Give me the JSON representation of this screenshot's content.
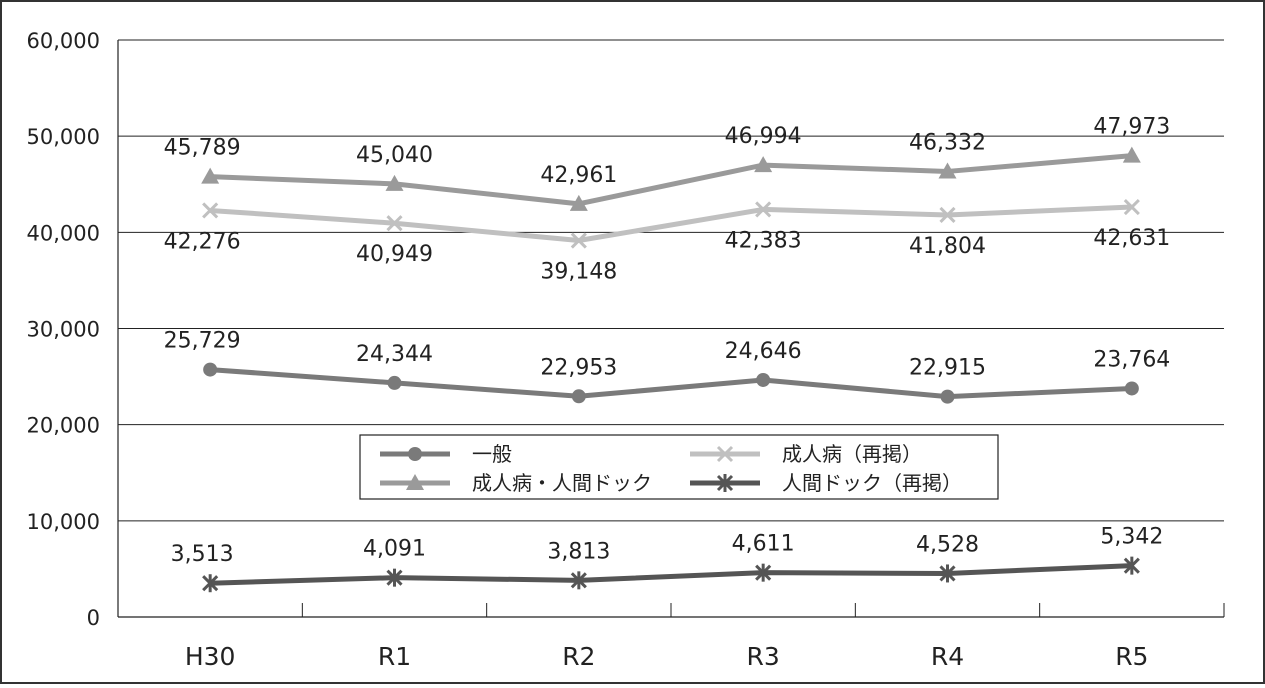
{
  "chart_data": {
    "type": "line",
    "categories": [
      "H30",
      "R1",
      "R2",
      "R3",
      "R4",
      "R5"
    ],
    "ylim": [
      0,
      60000
    ],
    "yticks": [
      0,
      10000,
      20000,
      30000,
      40000,
      50000,
      60000
    ],
    "ytick_labels": [
      "0",
      "10,000",
      "20,000",
      "30,000",
      "40,000",
      "50,000",
      "60,000"
    ],
    "grid": "horizontal",
    "legend_position": "center",
    "series": [
      {
        "name": "一般",
        "marker": "circle",
        "color": "#7a7a7a",
        "values": [
          25729,
          24344,
          22953,
          24646,
          22915,
          23764
        ],
        "labels": [
          "25,729",
          "24,344",
          "22,953",
          "24,646",
          "22,915",
          "23,764"
        ],
        "label_position": "above"
      },
      {
        "name": "成人病・人間ドック",
        "marker": "triangle",
        "color": "#9a9a9a",
        "values": [
          45789,
          45040,
          42961,
          46994,
          46332,
          47973
        ],
        "labels": [
          "45,789",
          "45,040",
          "42,961",
          "46,994",
          "46,332",
          "47,973"
        ],
        "label_position": "above"
      },
      {
        "name": "成人病（再掲）",
        "marker": "x",
        "color": "#c0c0c0",
        "values": [
          42276,
          40949,
          39148,
          42383,
          41804,
          42631
        ],
        "labels": [
          "42,276",
          "40,949",
          "39,148",
          "42,383",
          "41,804",
          "42,631"
        ],
        "label_position": "below"
      },
      {
        "name": "人間ドック（再掲）",
        "marker": "asterisk",
        "color": "#555555",
        "values": [
          3513,
          4091,
          3813,
          4611,
          4528,
          5342
        ],
        "labels": [
          "3,513",
          "4,091",
          "3,813",
          "4,611",
          "4,528",
          "5,342"
        ],
        "label_position": "above"
      }
    ],
    "legend_rows": [
      [
        "一般",
        "成人病（再掲）"
      ],
      [
        "成人病・人間ドック",
        "人間ドック（再掲）"
      ]
    ]
  }
}
